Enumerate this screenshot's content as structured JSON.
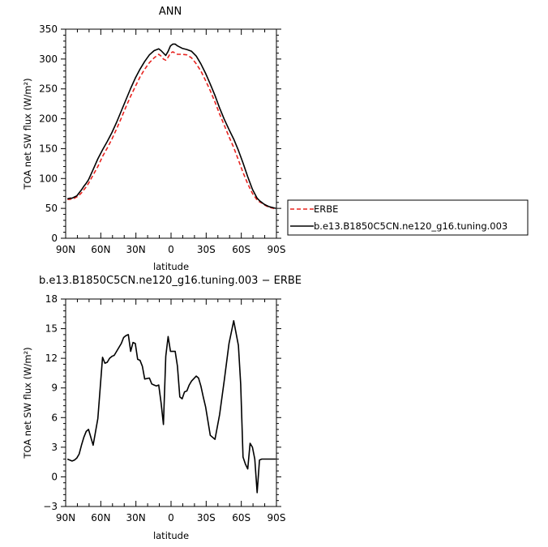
{
  "chart_data": [
    {
      "type": "line",
      "title": "ANN",
      "xlabel": "latitude",
      "ylabel": "TOA net SW flux (W/m²)",
      "xlim": [
        -90,
        90
      ],
      "ylim": [
        0,
        350
      ],
      "x_ticks": [
        -90,
        -60,
        -30,
        0,
        30,
        60,
        90
      ],
      "x_tick_labels": [
        "90N",
        "60N",
        "30N",
        "0",
        "30S",
        "60S",
        "90S"
      ],
      "y_ticks": [
        0,
        50,
        100,
        150,
        200,
        250,
        300,
        350
      ],
      "y_tick_labels": [
        "0",
        "50",
        "100",
        "150",
        "200",
        "250",
        "300",
        "350"
      ],
      "legend_position": "right",
      "series": [
        {
          "name": "ERBE",
          "color": "#e8231f",
          "dash": "dashed",
          "x": [
            -88.5,
            -86.5,
            -84.5,
            -82.5,
            -80.5,
            -78.5,
            -76.5,
            -74.5,
            -72.5,
            -70.5,
            -66.5,
            -62.5,
            -58.5,
            -54.5,
            -50.5,
            -46.5,
            -42.5,
            -38.5,
            -34.5,
            -30.5,
            -26.5,
            -22.5,
            -18.5,
            -14.5,
            -10.5,
            -8.5,
            -6.5,
            -4.5,
            -2.5,
            -0.5,
            1.5,
            3.5,
            5.5,
            9.5,
            13.5,
            17.5,
            21.5,
            25.5,
            29.5,
            33.5,
            37.5,
            41.5,
            45.5,
            49.5,
            53.5,
            57.5,
            61.5,
            65.5,
            69.5,
            73.5,
            75.5,
            77.5,
            79.5,
            81.5,
            83.5,
            85.5,
            87.5,
            89.5
          ],
          "values": [
            65,
            65,
            66,
            67,
            69,
            72,
            76,
            81,
            86,
            92,
            106,
            120,
            137,
            151,
            166,
            183,
            201,
            220,
            238,
            254,
            270,
            283,
            294,
            302,
            308,
            305,
            300,
            298,
            303,
            310,
            312,
            310,
            308,
            308,
            307,
            302,
            292,
            280,
            264,
            247,
            228,
            208,
            189,
            170,
            152,
            131,
            110,
            91,
            75,
            64,
            61,
            59,
            56,
            54,
            52,
            51,
            50,
            49
          ]
        },
        {
          "name": "b.e13.B1850C5CN.ne120_g16.tuning.003",
          "color": "#000000",
          "dash": "solid",
          "x": [
            -88.5,
            -86.5,
            -84.5,
            -82.5,
            -80.5,
            -78.5,
            -76.5,
            -74.5,
            -72.5,
            -70.5,
            -66.5,
            -62.5,
            -58.5,
            -54.5,
            -50.5,
            -46.5,
            -42.5,
            -38.5,
            -34.5,
            -30.5,
            -26.5,
            -22.5,
            -18.5,
            -14.5,
            -10.5,
            -8.5,
            -6.5,
            -4.5,
            -2.5,
            -0.5,
            1.5,
            3.5,
            5.5,
            9.5,
            13.5,
            17.5,
            21.5,
            25.5,
            29.5,
            33.5,
            37.5,
            41.5,
            45.5,
            49.5,
            53.5,
            57.5,
            61.5,
            65.5,
            69.5,
            73.5,
            75.5,
            77.5,
            79.5,
            81.5,
            83.5,
            85.5,
            87.5,
            89.5
          ],
          "values": [
            66,
            67,
            67,
            69,
            71,
            76,
            81,
            87,
            92,
            98,
            115,
            133,
            148,
            162,
            177,
            194,
            213,
            232,
            251,
            268,
            283,
            296,
            307,
            314,
            317,
            314,
            310,
            306,
            313,
            322,
            325,
            325,
            322,
            318,
            316,
            313,
            305,
            292,
            276,
            258,
            239,
            218,
            199,
            182,
            166,
            147,
            126,
            103,
            82,
            67,
            63,
            60,
            57,
            55,
            53,
            52,
            51,
            50
          ]
        }
      ]
    },
    {
      "type": "line",
      "title": "b.e13.B1850C5CN.ne120_g16.tuning.003 − ERBE",
      "xlabel": "latitude",
      "ylabel": "TOA net SW flux (W/m²)",
      "xlim": [
        -90,
        90
      ],
      "ylim": [
        -3,
        18
      ],
      "x_ticks": [
        -90,
        -60,
        -30,
        0,
        30,
        60,
        90
      ],
      "x_tick_labels": [
        "90N",
        "60N",
        "30N",
        "0",
        "30S",
        "60S",
        "90S"
      ],
      "y_ticks": [
        -3,
        0,
        3,
        6,
        9,
        12,
        15,
        18
      ],
      "y_tick_labels": [
        "−3",
        "0",
        "3",
        "6",
        "9",
        "12",
        "15",
        "18"
      ],
      "series": [
        {
          "color": "#000000",
          "dash": "solid",
          "x": [
            -88.5,
            -86.5,
            -84.5,
            -82.5,
            -80.5,
            -78.5,
            -76.5,
            -74.5,
            -72.5,
            -70.5,
            -66.5,
            -62.5,
            -60.5,
            -58.5,
            -56.5,
            -54.5,
            -52.5,
            -50.5,
            -48.5,
            -46.5,
            -42.5,
            -40.5,
            -38.5,
            -36.5,
            -34.5,
            -32.5,
            -30.5,
            -28.5,
            -26.5,
            -24.5,
            -22.5,
            -18.5,
            -16.5,
            -14.5,
            -12.5,
            -10.5,
            -8.5,
            -6.5,
            -4.5,
            -2.5,
            -0.5,
            1.5,
            3.5,
            5.5,
            7.5,
            9.5,
            11.5,
            13.5,
            15.5,
            17.5,
            21.5,
            23.5,
            25.5,
            27.5,
            29.5,
            33.5,
            37.5,
            41.5,
            45.5,
            49.5,
            53.5,
            57.5,
            59.5,
            61.5,
            63.5,
            65.5,
            67.5,
            69.5,
            71.5,
            73.5,
            75.5,
            77.5,
            79.5,
            81.5,
            83.5,
            85.5,
            87.5,
            89.5
          ],
          "values": [
            1.8,
            1.7,
            1.6,
            1.7,
            1.9,
            2.3,
            3.2,
            4.0,
            4.6,
            4.8,
            3.2,
            5.9,
            9.0,
            12.1,
            11.5,
            11.6,
            12.0,
            12.2,
            12.3,
            12.7,
            13.5,
            14.1,
            14.3,
            14.4,
            12.7,
            13.6,
            13.5,
            11.9,
            11.8,
            11.2,
            9.9,
            10.0,
            9.4,
            9.3,
            9.2,
            9.3,
            7.5,
            5.3,
            12.2,
            14.2,
            12.7,
            12.7,
            12.7,
            11.2,
            8.1,
            7.9,
            8.6,
            8.7,
            9.3,
            9.7,
            10.2,
            10.0,
            9.2,
            8.1,
            7.1,
            4.2,
            3.8,
            6.3,
            9.8,
            13.5,
            15.8,
            13.3,
            9.4,
            2.0,
            1.3,
            0.8,
            3.4,
            3.0,
            1.8,
            -1.6,
            1.7,
            1.8,
            1.8,
            1.8,
            1.8,
            1.8,
            1.8,
            1.8
          ]
        }
      ]
    }
  ]
}
